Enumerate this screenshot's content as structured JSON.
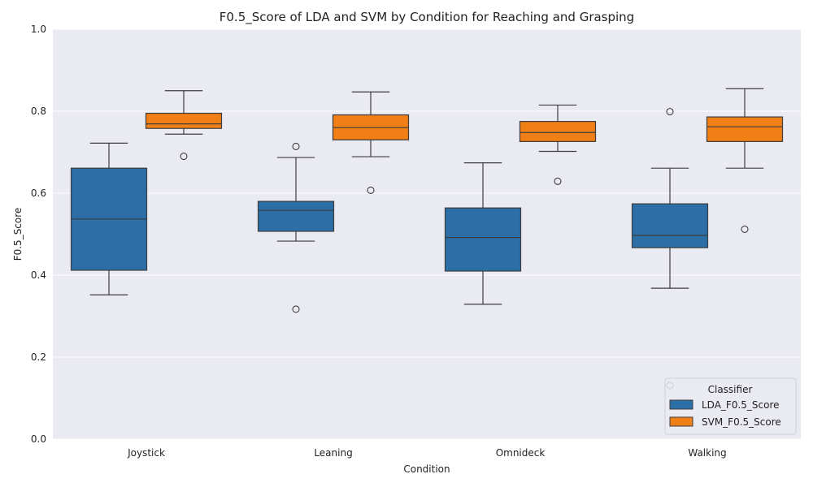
{
  "chart_data": {
    "type": "box",
    "title": "F0.5_Score of LDA and SVM by Condition for Reaching and Grasping",
    "xlabel": "Condition",
    "ylabel": "F0.5_Score",
    "ylim": [
      0,
      1
    ],
    "yticks": [
      "0.0",
      "0.2",
      "0.4",
      "0.6",
      "0.8",
      "1.0"
    ],
    "categories": [
      "Joystick",
      "Leaning",
      "Omnideck",
      "Walking"
    ],
    "grid": true,
    "legend": {
      "title": "Classifier",
      "position": "lower-right"
    },
    "colors": {
      "background": "#eaeaf2",
      "grid": "#ffffff",
      "edge": "#3d3d3d"
    },
    "series": [
      {
        "name": "LDA_F0.5_Score",
        "color": "#2b6fa6",
        "boxes": [
          {
            "whislo": 0.352,
            "q1": 0.412,
            "med": 0.537,
            "q3": 0.661,
            "whishi": 0.722,
            "fliers": []
          },
          {
            "whislo": 0.483,
            "q1": 0.507,
            "med": 0.558,
            "q3": 0.58,
            "whishi": 0.687,
            "fliers": [
              0.714,
              0.317
            ]
          },
          {
            "whislo": 0.329,
            "q1": 0.41,
            "med": 0.492,
            "q3": 0.564,
            "whishi": 0.674,
            "fliers": []
          },
          {
            "whislo": 0.368,
            "q1": 0.467,
            "med": 0.497,
            "q3": 0.574,
            "whishi": 0.661,
            "fliers": [
              0.799,
              0.131
            ]
          }
        ]
      },
      {
        "name": "SVM_F0.5_Score",
        "color": "#f07f16",
        "boxes": [
          {
            "whislo": 0.744,
            "q1": 0.758,
            "med": 0.769,
            "q3": 0.795,
            "whishi": 0.85,
            "fliers": [
              0.69
            ]
          },
          {
            "whislo": 0.689,
            "q1": 0.73,
            "med": 0.76,
            "q3": 0.791,
            "whishi": 0.847,
            "fliers": [
              0.607
            ]
          },
          {
            "whislo": 0.702,
            "q1": 0.726,
            "med": 0.748,
            "q3": 0.775,
            "whishi": 0.815,
            "fliers": [
              0.629
            ]
          },
          {
            "whislo": 0.661,
            "q1": 0.726,
            "med": 0.762,
            "q3": 0.786,
            "whishi": 0.855,
            "fliers": [
              0.512
            ]
          }
        ]
      }
    ]
  }
}
